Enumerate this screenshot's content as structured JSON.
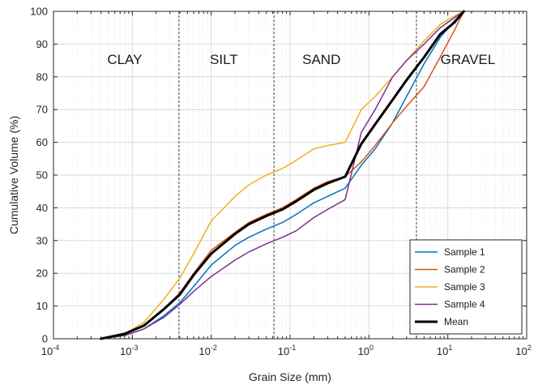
{
  "chart_data": {
    "type": "line",
    "xlabel": "Grain Size (mm)",
    "ylabel": "Cumulative Volume (%)",
    "xscale": "log",
    "xlim": [
      0.0001,
      100
    ],
    "ylim": [
      0,
      100
    ],
    "grid": true,
    "legend_position": "bottom-right",
    "x_ticks": [
      {
        "value": 0.0001,
        "base": "10",
        "exp": "-4"
      },
      {
        "value": 0.001,
        "base": "10",
        "exp": "-3"
      },
      {
        "value": 0.01,
        "base": "10",
        "exp": "-2"
      },
      {
        "value": 0.1,
        "base": "10",
        "exp": "-1"
      },
      {
        "value": 1,
        "base": "10",
        "exp": "0"
      },
      {
        "value": 10,
        "base": "10",
        "exp": "1"
      },
      {
        "value": 100,
        "base": "10",
        "exp": "2"
      }
    ],
    "y_ticks": [
      "0",
      "10",
      "20",
      "30",
      "40",
      "50",
      "60",
      "70",
      "80",
      "90",
      "100"
    ],
    "boundaries": [
      0.0039,
      0.0625,
      4
    ],
    "zones": [
      {
        "label": "CLAY",
        "x": 0.0008
      },
      {
        "label": "SILT",
        "x": 0.0145
      },
      {
        "label": "SAND",
        "x": 0.25
      },
      {
        "label": "GRAVEL",
        "x": 18
      }
    ],
    "series": [
      {
        "name": "Sample 1",
        "color": "#0072BD",
        "x": [
          0.0004,
          0.0008,
          0.0014,
          0.0025,
          0.004,
          0.006,
          0.01,
          0.02,
          0.03,
          0.05,
          0.08,
          0.12,
          0.2,
          0.3,
          0.5,
          0.8,
          1.2,
          2,
          3,
          5,
          8,
          12,
          16
        ],
        "y": [
          0,
          1,
          3,
          7,
          11,
          16,
          22.5,
          28.5,
          31,
          33.5,
          35.5,
          38,
          41.5,
          43.5,
          46,
          53,
          58,
          66,
          74,
          84,
          92,
          97,
          100
        ]
      },
      {
        "name": "Sample 2",
        "color": "#D95319",
        "x": [
          0.0004,
          0.0008,
          0.0014,
          0.0025,
          0.004,
          0.006,
          0.01,
          0.02,
          0.03,
          0.05,
          0.08,
          0.12,
          0.2,
          0.3,
          0.5,
          0.8,
          1.2,
          2,
          3,
          5,
          8,
          12,
          16
        ],
        "y": [
          0,
          1.5,
          4,
          9,
          14,
          20,
          27,
          32.5,
          35.5,
          38,
          40,
          42.5,
          46,
          48,
          49.5,
          54,
          59,
          66,
          71,
          77,
          86,
          94,
          100
        ]
      },
      {
        "name": "Sample 3",
        "color": "#EDB120",
        "x": [
          0.0004,
          0.0008,
          0.0014,
          0.0025,
          0.004,
          0.006,
          0.01,
          0.02,
          0.03,
          0.05,
          0.08,
          0.12,
          0.2,
          0.3,
          0.5,
          0.8,
          1.2,
          2,
          3,
          5,
          8,
          12,
          16
        ],
        "y": [
          0,
          1.5,
          5,
          12,
          18.5,
          26,
          36,
          43.5,
          47,
          50,
          52,
          54.5,
          58,
          59,
          60,
          70,
          74,
          80,
          85,
          91,
          96,
          98.5,
          100
        ]
      },
      {
        "name": "Sample 4",
        "color": "#7E2F8E",
        "x": [
          0.0004,
          0.0008,
          0.0014,
          0.0025,
          0.004,
          0.006,
          0.01,
          0.02,
          0.03,
          0.05,
          0.08,
          0.12,
          0.2,
          0.3,
          0.5,
          0.8,
          1.2,
          2,
          3,
          5,
          8,
          12,
          16
        ],
        "y": [
          0,
          1,
          3,
          6.5,
          10.5,
          14.5,
          19,
          24,
          26.5,
          29,
          31,
          33,
          37,
          39.5,
          42.5,
          63,
          70,
          80,
          85,
          90,
          95,
          98,
          100
        ]
      },
      {
        "name": "Mean",
        "color": "#000000",
        "x": [
          0.0004,
          0.0008,
          0.0014,
          0.0025,
          0.004,
          0.006,
          0.01,
          0.02,
          0.03,
          0.05,
          0.08,
          0.12,
          0.2,
          0.3,
          0.5,
          0.8,
          1.2,
          2,
          3,
          5,
          8,
          12,
          16
        ],
        "y": [
          0,
          1.5,
          4,
          9,
          13.5,
          19.5,
          26,
          32,
          35,
          37.5,
          39.5,
          42,
          45.5,
          47.5,
          49.5,
          59.5,
          65.5,
          73,
          79,
          86,
          93,
          96.5,
          100
        ]
      }
    ]
  }
}
